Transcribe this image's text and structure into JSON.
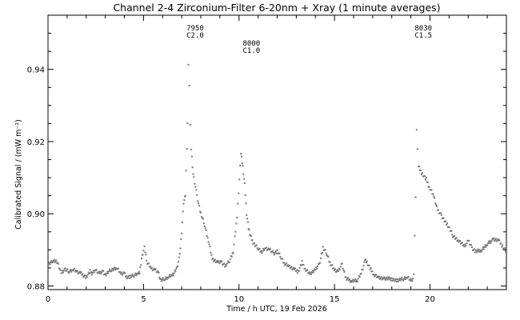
{
  "chart_data": {
    "type": "scatter",
    "title": "Channel 2-4   Zirconium-Filter   6-20nm + Xray   (1 minute averages)",
    "xlabel": "Time / h UTC, 19 Feb 2026",
    "ylabel": "Calibrated Signal / (mW m⁻²)",
    "xlim": [
      0,
      24
    ],
    "ylim": [
      0.879,
      0.955
    ],
    "x_ticks": [
      0,
      5,
      10,
      15,
      20
    ],
    "x_tick_labels": [
      "0",
      "5",
      "10",
      "15",
      "20"
    ],
    "y_ticks": [
      0.88,
      0.9,
      0.92,
      0.94
    ],
    "y_tick_labels": [
      "0.88",
      "0.90",
      "0.92",
      "0.94"
    ],
    "grid": false,
    "marker_color": "#777777",
    "annotations": [
      {
        "x": 7.25,
        "lines": [
          "7950",
          "C2.0"
        ]
      },
      {
        "x": 10.2,
        "lines": [
          "8000",
          "C1.0"
        ]
      },
      {
        "x": 19.2,
        "lines": [
          "8030",
          "C1.5"
        ]
      }
    ],
    "series": [
      {
        "x": [
          0.0,
          0.25,
          0.5,
          0.7,
          0.75,
          0.9,
          1.1,
          1.3,
          1.5,
          1.7,
          2.0,
          2.2,
          2.3,
          2.5,
          2.7,
          2.9,
          3.0,
          3.3,
          3.6,
          3.8,
          4.0,
          4.1,
          4.3,
          4.5,
          4.7,
          4.8,
          4.9,
          5.0,
          5.05,
          5.2,
          5.4,
          5.6,
          5.8,
          5.9,
          6.1,
          6.3,
          6.5,
          6.6,
          6.75,
          6.9,
          7.0,
          7.1,
          7.2,
          7.3,
          7.35,
          7.4,
          7.45,
          7.5,
          7.6,
          7.8,
          8.0,
          8.2,
          8.4,
          8.6,
          8.9,
          9.1,
          9.3,
          9.5,
          9.7,
          9.9,
          10.1,
          10.2,
          10.3,
          10.4,
          10.5,
          10.6,
          10.7,
          10.8,
          11.0,
          11.2,
          11.4,
          11.6,
          11.8,
          12.0,
          12.2,
          12.4,
          12.6,
          12.9,
          13.1,
          13.3,
          13.5,
          13.7,
          14.0,
          14.2,
          14.4,
          14.6,
          14.8,
          15.0,
          15.2,
          15.4,
          15.6,
          15.9,
          16.2,
          16.4,
          16.6,
          16.7,
          16.9,
          17.1,
          17.3,
          17.6,
          18.0,
          18.3,
          18.6,
          18.8,
          19.0,
          19.1,
          19.15,
          19.2,
          19.25,
          19.3,
          19.35,
          19.4,
          19.6,
          19.8,
          20.0,
          20.2,
          20.4,
          20.6,
          20.9,
          21.2,
          21.5,
          21.8,
          22.0,
          22.2,
          22.4,
          22.7,
          23.0,
          23.3,
          23.6,
          23.8,
          24.0
        ],
        "y": [
          0.886,
          0.887,
          0.8865,
          0.8835,
          0.884,
          0.8845,
          0.884,
          0.8845,
          0.884,
          0.8835,
          0.8825,
          0.884,
          0.8835,
          0.8845,
          0.8835,
          0.884,
          0.883,
          0.8845,
          0.885,
          0.8835,
          0.8835,
          0.8825,
          0.8825,
          0.883,
          0.8835,
          0.8835,
          0.8875,
          0.8895,
          0.8905,
          0.8865,
          0.885,
          0.8845,
          0.8835,
          0.8815,
          0.882,
          0.8825,
          0.883,
          0.8835,
          0.885,
          0.8885,
          0.895,
          0.903,
          0.905,
          0.925,
          0.941,
          0.935,
          0.925,
          0.918,
          0.911,
          0.905,
          0.9,
          0.897,
          0.8925,
          0.8875,
          0.8865,
          0.8865,
          0.8855,
          0.887,
          0.8895,
          0.899,
          0.9165,
          0.913,
          0.908,
          0.9,
          0.896,
          0.894,
          0.8925,
          0.8915,
          0.8905,
          0.8895,
          0.8905,
          0.89,
          0.889,
          0.8895,
          0.888,
          0.886,
          0.8855,
          0.8845,
          0.884,
          0.8865,
          0.8845,
          0.8835,
          0.8845,
          0.886,
          0.8905,
          0.889,
          0.886,
          0.8845,
          0.884,
          0.886,
          0.882,
          0.8815,
          0.8815,
          0.8835,
          0.887,
          0.8865,
          0.8845,
          0.883,
          0.8825,
          0.882,
          0.882,
          0.8815,
          0.882,
          0.8825,
          0.8815,
          0.882,
          0.883,
          0.8935,
          0.905,
          0.9235,
          0.918,
          0.913,
          0.911,
          0.9095,
          0.907,
          0.905,
          0.901,
          0.8995,
          0.897,
          0.894,
          0.8925,
          0.891,
          0.8925,
          0.8905,
          0.8895,
          0.89,
          0.8915,
          0.893,
          0.8925,
          0.891,
          0.8895
        ]
      }
    ]
  }
}
